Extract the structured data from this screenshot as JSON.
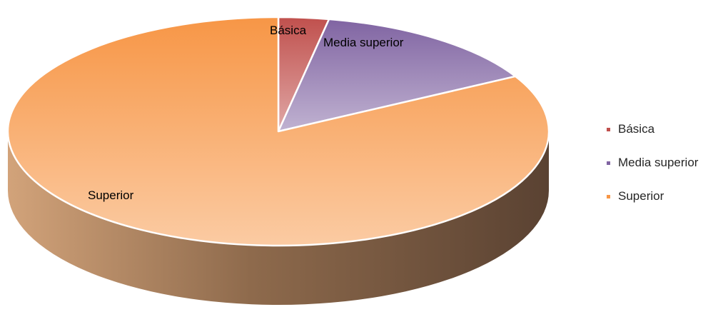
{
  "chart_data": {
    "type": "pie",
    "title": "",
    "categories": [
      "Básica",
      "Media superior",
      "Superior"
    ],
    "values": [
      3,
      14,
      83
    ],
    "colors": [
      "#C0504D",
      "#8064A2",
      "#F79646"
    ],
    "side_color": "#A8876A",
    "legend_position": "right",
    "three_d": true
  }
}
